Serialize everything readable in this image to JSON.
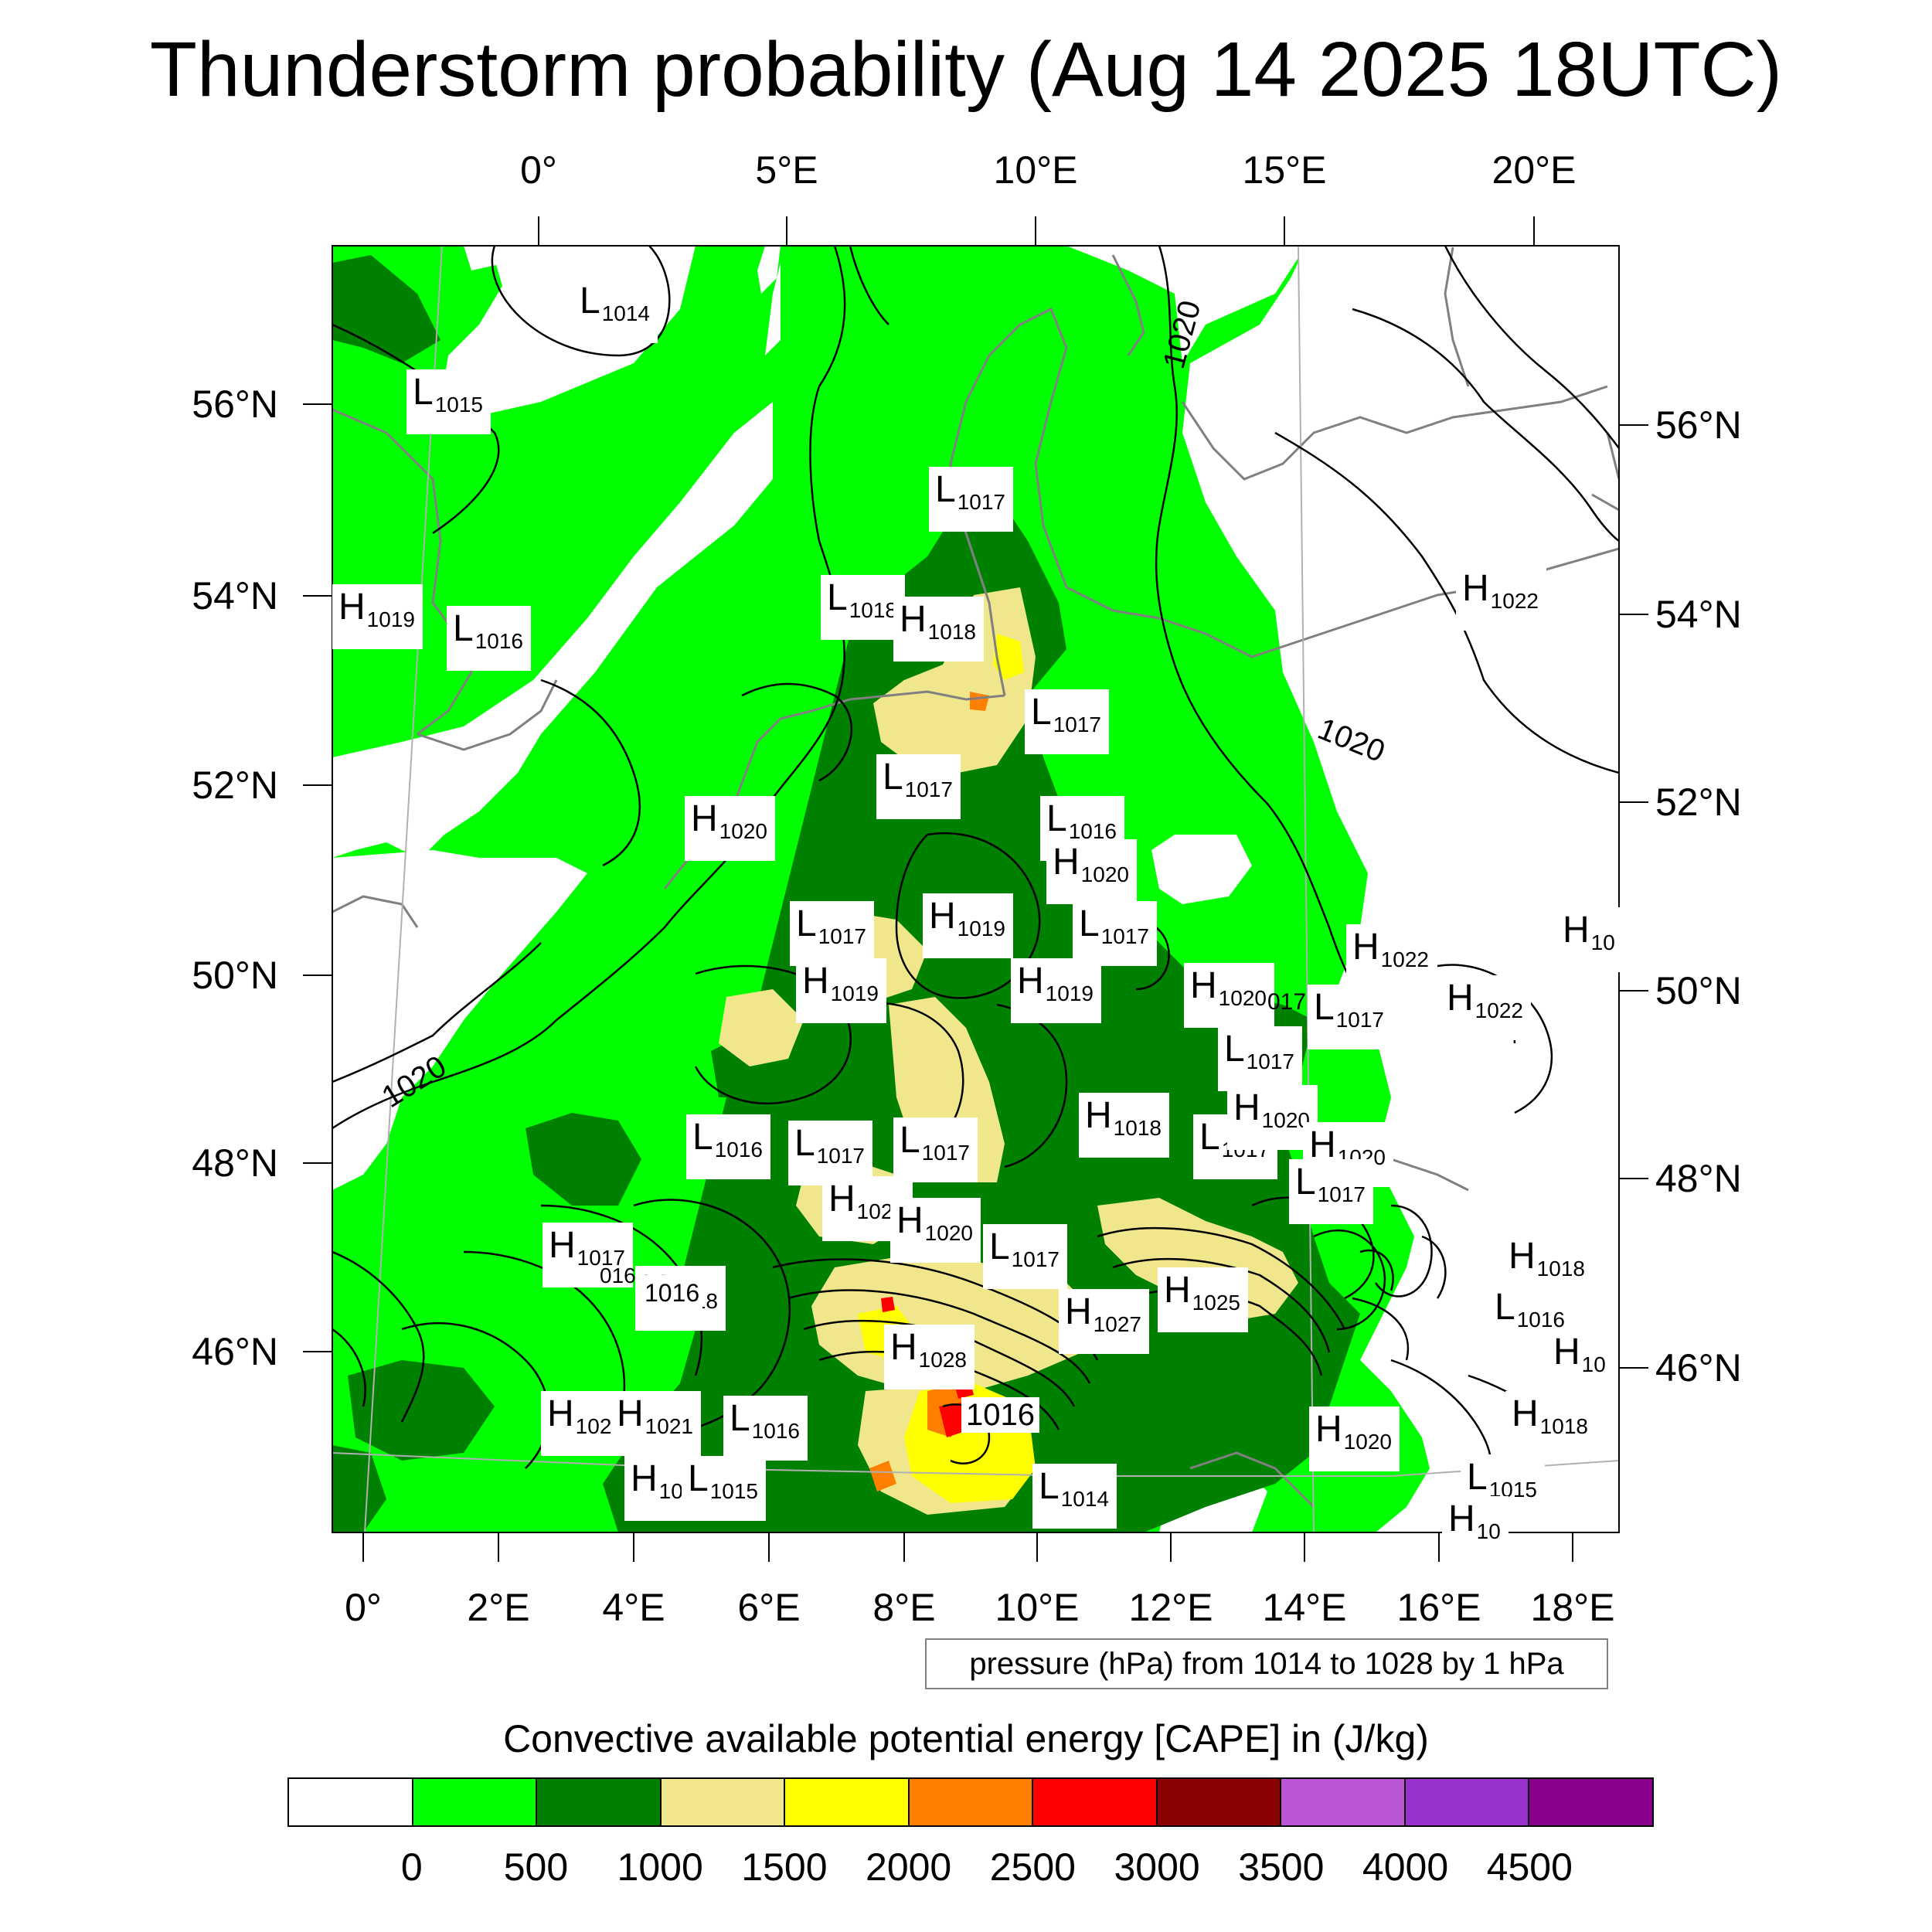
{
  "title": "Thunderstorm probability (Aug 14 2025 18UTC)",
  "longitude_ticks_top": [
    "0°",
    "5°E",
    "10°E",
    "15°E",
    "20°E"
  ],
  "longitude_ticks_bottom": [
    "0°",
    "2°E",
    "4°E",
    "6°E",
    "8°E",
    "10°E",
    "12°E",
    "14°E",
    "16°E",
    "18°E"
  ],
  "latitude_ticks_left": [
    "56°N",
    "54°N",
    "52°N",
    "50°N",
    "48°N",
    "46°N"
  ],
  "latitude_ticks_right": [
    "56°N",
    "54°N",
    "52°N",
    "50°N",
    "48°N",
    "46°N"
  ],
  "pressure_centers": [
    {
      "t": "L",
      "v": "1014"
    },
    {
      "t": "L",
      "v": "1015"
    },
    {
      "t": "L",
      "v": "1017"
    },
    {
      "t": "H",
      "v": "1019"
    },
    {
      "t": "L",
      "v": "1016"
    },
    {
      "t": "L",
      "v": "1018"
    },
    {
      "t": "H",
      "v": "1018"
    },
    {
      "t": "L",
      "v": "1017"
    },
    {
      "t": "L",
      "v": "1017"
    },
    {
      "t": "H",
      "v": "1020"
    },
    {
      "t": "L",
      "v": "1016"
    },
    {
      "t": "H",
      "v": "1020"
    },
    {
      "t": "L",
      "v": "1017"
    },
    {
      "t": "H",
      "v": "1019"
    },
    {
      "t": "L",
      "v": "1017"
    },
    {
      "t": "H",
      "v": "1019"
    },
    {
      "t": "H",
      "v": "1019"
    },
    {
      "t": "H",
      "v": "1020"
    },
    {
      "t": "L",
      "v": "1017"
    },
    {
      "t": "L",
      "v": "1017"
    },
    {
      "t": "H",
      "v": "1022"
    },
    {
      "t": "H",
      "v": "1022"
    },
    {
      "t": "H",
      "v": "1022"
    },
    {
      "t": "H",
      "v": "10"
    },
    {
      "t": "L",
      "v": "1016"
    },
    {
      "t": "L",
      "v": "1017"
    },
    {
      "t": "L",
      "v": "1017"
    },
    {
      "t": "H",
      "v": "1018"
    },
    {
      "t": "L",
      "v": "1017"
    },
    {
      "t": "H",
      "v": "1020"
    },
    {
      "t": "H",
      "v": "1020"
    },
    {
      "t": "L",
      "v": "1017"
    },
    {
      "t": "H",
      "v": "1020"
    },
    {
      "t": "H",
      "v": "1020"
    },
    {
      "t": "L",
      "v": "1017"
    },
    {
      "t": "H",
      "v": "1017"
    },
    {
      "t": "H",
      "v": "1018"
    },
    {
      "t": "H",
      "v": "1027"
    },
    {
      "t": "H",
      "v": "1025"
    },
    {
      "t": "H",
      "v": "1028"
    },
    {
      "t": "H",
      "v": "102"
    },
    {
      "t": "H",
      "v": "1021"
    },
    {
      "t": "L",
      "v": "1016"
    },
    {
      "t": "H",
      "v": "1018"
    },
    {
      "t": "L",
      "v": "1016"
    },
    {
      "t": "H",
      "v": "10"
    },
    {
      "t": "H",
      "v": "1018"
    },
    {
      "t": "H",
      "v": "1020"
    },
    {
      "t": "H",
      "v": "10"
    },
    {
      "t": "L",
      "v": "1015"
    },
    {
      "t": "L",
      "v": "1014"
    },
    {
      "t": "L",
      "v": "1015"
    },
    {
      "t": "H",
      "v": "10"
    }
  ],
  "isobar_labels": [
    "1020",
    "1020",
    "1020",
    "1016",
    "1016",
    "016",
    "017"
  ],
  "contour_note": "pressure (hPa) from 1014 to 1028 by 1 hPa",
  "colorbar_title": "Convective available potential energy [CAPE] in (J/kg)",
  "colorbar_labels": [
    "0",
    "500",
    "1000",
    "1500",
    "2000",
    "2500",
    "3000",
    "3500",
    "4000",
    "4500"
  ],
  "colorbar_colors": [
    "#ffffff",
    "#00ff00",
    "#008000",
    "#f0e68c",
    "#ffff00",
    "#ff8000",
    "#ff0000",
    "#8b0000",
    "#ba55d3",
    "#9932cc",
    "#8b008b"
  ],
  "colors": {
    "cape_0_500": "#00ff00",
    "cape_500_1000": "#008000",
    "cape_1000_1500": "#f0e68c",
    "cape_1500_2000": "#ffff00",
    "cape_2000_2500": "#ff8000",
    "cape_2500_3000": "#ff0000",
    "coastline": "#808080",
    "isobar": "#000000"
  }
}
